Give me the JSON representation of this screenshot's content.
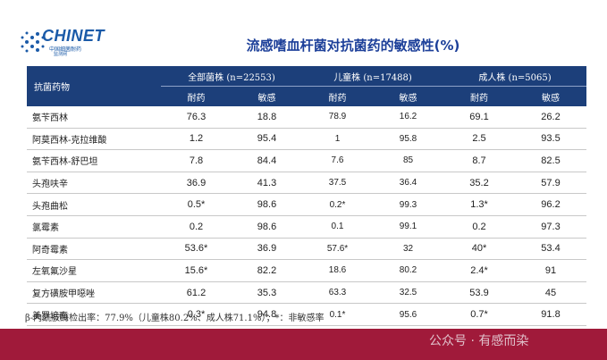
{
  "logo": {
    "name": "CHINET",
    "sub1": "中国细菌耐药",
    "sub2": "监测网"
  },
  "title": "流感嗜血杆菌对抗菌药的敏感性(%)",
  "table": {
    "drug_header": "抗菌药物",
    "groups": [
      "全部菌株 (n=22553)",
      "儿童株 (n=17488)",
      "成人株 (n=5065)"
    ],
    "sub_headers": [
      "耐药",
      "敏感",
      "耐药",
      "敏感",
      "耐药",
      "敏感"
    ],
    "rows": [
      {
        "drug": "氨苄西林",
        "values": [
          "76.3",
          "18.8",
          "78.9",
          "16.2",
          "69.1",
          "26.2"
        ]
      },
      {
        "drug": "阿莫西林-克拉维酸",
        "values": [
          "1.2",
          "95.4",
          "1",
          "95.8",
          "2.5",
          "93.5"
        ]
      },
      {
        "drug": "氨苄西林-舒巴坦",
        "values": [
          "7.8",
          "84.4",
          "7.6",
          "85",
          "8.7",
          "82.5"
        ]
      },
      {
        "drug": "头孢呋辛",
        "values": [
          "36.9",
          "41.3",
          "37.5",
          "36.4",
          "35.2",
          "57.9"
        ]
      },
      {
        "drug": "头孢曲松",
        "values": [
          "0.5*",
          "98.6",
          "0.2*",
          "99.3",
          "1.3*",
          "96.2"
        ]
      },
      {
        "drug": "氯霉素",
        "values": [
          "0.2",
          "98.6",
          "0.1",
          "99.1",
          "0.2",
          "97.3"
        ]
      },
      {
        "drug": "阿奇霉素",
        "values": [
          "53.6*",
          "36.9",
          "57.6*",
          "32",
          "40*",
          "53.4"
        ]
      },
      {
        "drug": "左氧氟沙星",
        "values": [
          "15.6*",
          "82.2",
          "18.6",
          "80.2",
          "2.4*",
          "91"
        ]
      },
      {
        "drug": "复方磺胺甲噁唑",
        "values": [
          "61.2",
          "35.3",
          "63.3",
          "32.5",
          "53.9",
          "45"
        ]
      },
      {
        "drug": "美罗培南",
        "values": [
          "0.3*",
          "94.8",
          "0.1*",
          "95.6",
          "0.7*",
          "91.8"
        ]
      }
    ]
  },
  "note": "β-内酰胺酶检出率：77.9%（儿童株80.2%、成人株71.1%）；*：非敏感率",
  "watermark": "公众号 · 有感而染",
  "colors": {
    "header_bg": "#1c3f7a",
    "title": "#1c3f99",
    "footer": "#a01a3a"
  }
}
